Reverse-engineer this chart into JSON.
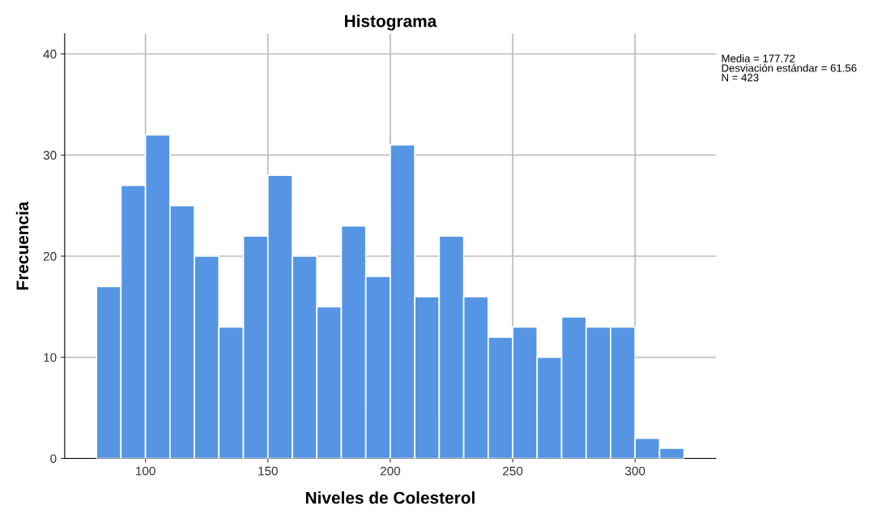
{
  "chart_data": {
    "type": "histogram",
    "title": "Histograma",
    "xlabel": "Niveles de Colesterol",
    "ylabel": "Frecuencia",
    "bins": [
      80,
      90,
      100,
      110,
      120,
      130,
      140,
      150,
      160,
      170,
      180,
      190,
      200,
      210,
      220,
      230,
      240,
      250,
      260,
      270,
      280,
      290,
      300,
      310,
      320
    ],
    "values": [
      17,
      27,
      32,
      25,
      20,
      13,
      22,
      28,
      20,
      15,
      23,
      18,
      31,
      16,
      22,
      16,
      12,
      13,
      10,
      14,
      13,
      13,
      2,
      1
    ],
    "color": "#5595e3",
    "xlim": [
      67,
      333
    ],
    "xticks": [
      100,
      150,
      200,
      250,
      300
    ],
    "ylim": [
      0,
      42
    ],
    "yticks": [
      0,
      10,
      20,
      30,
      40
    ],
    "grid": true,
    "annotations": [
      "Media = 177.72\nDesviación estándar = 61.56\nN = 423"
    ]
  }
}
